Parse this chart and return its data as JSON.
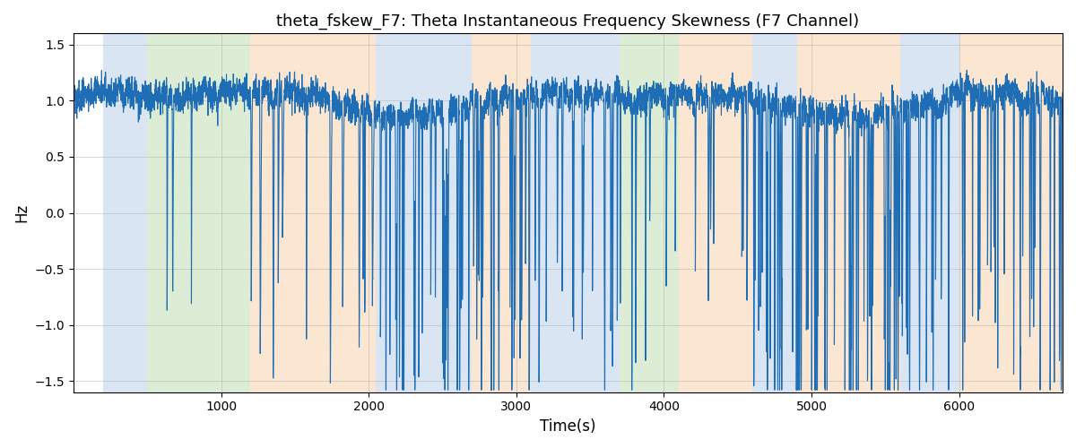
{
  "title": "theta_fskew_F7: Theta Instantaneous Frequency Skewness (F7 Channel)",
  "xlabel": "Time(s)",
  "ylabel": "Hz",
  "xlim": [
    0,
    6700
  ],
  "ylim": [
    -1.6,
    1.6
  ],
  "yticks": [
    -1.5,
    -1.0,
    -0.5,
    0.0,
    0.5,
    1.0,
    1.5
  ],
  "xticks": [
    1000,
    2000,
    3000,
    4000,
    5000,
    6000
  ],
  "line_color": "#1f6eb5",
  "line_width": 0.8,
  "bg_color": "#ffffff",
  "grid_color": "#b0b0b0",
  "bands": [
    {
      "xmin": 200,
      "xmax": 500,
      "color": "#aec6e8",
      "alpha": 0.45
    },
    {
      "xmin": 500,
      "xmax": 1200,
      "color": "#b5d9a3",
      "alpha": 0.45
    },
    {
      "xmin": 1200,
      "xmax": 2050,
      "color": "#f7c89b",
      "alpha": 0.45
    },
    {
      "xmin": 2050,
      "xmax": 2700,
      "color": "#aec6e8",
      "alpha": 0.45
    },
    {
      "xmin": 2700,
      "xmax": 3100,
      "color": "#f7c89b",
      "alpha": 0.45
    },
    {
      "xmin": 3100,
      "xmax": 3700,
      "color": "#aec6e8",
      "alpha": 0.45
    },
    {
      "xmin": 3700,
      "xmax": 4100,
      "color": "#b5d9a3",
      "alpha": 0.45
    },
    {
      "xmin": 4100,
      "xmax": 4600,
      "color": "#f7c89b",
      "alpha": 0.45
    },
    {
      "xmin": 4600,
      "xmax": 4900,
      "color": "#aec6e8",
      "alpha": 0.45
    },
    {
      "xmin": 4900,
      "xmax": 5600,
      "color": "#f7c89b",
      "alpha": 0.45
    },
    {
      "xmin": 5600,
      "xmax": 6000,
      "color": "#aec6e8",
      "alpha": 0.45
    },
    {
      "xmin": 6000,
      "xmax": 6700,
      "color": "#f7c89b",
      "alpha": 0.45
    }
  ],
  "seed": 42,
  "figsize": [
    12,
    5
  ],
  "dpi": 100
}
